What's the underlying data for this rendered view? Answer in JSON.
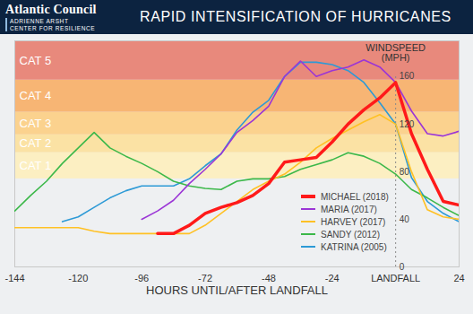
{
  "chart_data": {
    "type": "line",
    "title": "RAPID INTENSIFICATION OF HURRICANES",
    "logo_text": [
      "Atlantic Council",
      "ADRIENNE ARSHT",
      "CENTER FOR RESILIENCE"
    ],
    "x_label": "HOURS UNTIL/AFTER LANDFALL",
    "y_label": "WINDSPEED (MPH)",
    "x": [
      -144,
      -138,
      -132,
      -126,
      -120,
      -114,
      -108,
      -102,
      -96,
      -90,
      -84,
      -78,
      -72,
      -66,
      -60,
      -54,
      -48,
      -42,
      -36,
      -30,
      -24,
      -18,
      -12,
      -6,
      0,
      6,
      12,
      18,
      24
    ],
    "xlim": [
      -144,
      24
    ],
    "xticks": [
      -144,
      -120,
      -96,
      -72,
      -48,
      -24,
      {
        "value": 0,
        "label": "LANDFALL"
      },
      24
    ],
    "ylim": [
      0,
      190
    ],
    "yticks": [
      0,
      40,
      80,
      120,
      160
    ],
    "y_axis_x": 0,
    "grid": false,
    "legend": "bottom-right",
    "bands": [
      {
        "label": "CAT 1",
        "from": 74,
        "to": 96,
        "color": "#fcefc2"
      },
      {
        "label": "CAT 2",
        "from": 96,
        "to": 111,
        "color": "#fbe2a4"
      },
      {
        "label": "CAT 3",
        "from": 111,
        "to": 130,
        "color": "#fbd28e"
      },
      {
        "label": "CAT 4",
        "from": 130,
        "to": 157,
        "color": "#f7b574"
      },
      {
        "label": "CAT 5",
        "from": 157,
        "to": 190,
        "color": "#e8897c"
      }
    ],
    "series": [
      {
        "name": "MICHAEL (2018)",
        "color": "#ff1a1a",
        "line_style": "bold",
        "values": [
          null,
          null,
          null,
          null,
          null,
          null,
          null,
          null,
          null,
          28,
          28,
          35,
          45,
          50,
          54,
          60,
          70,
          88,
          90,
          92,
          105,
          120,
          132,
          142,
          155,
          112,
          82,
          55,
          52
        ]
      },
      {
        "name": "MARIA (2017)",
        "color": "#9b35d6",
        "line_style": "solid",
        "values": [
          null,
          null,
          null,
          null,
          null,
          null,
          null,
          null,
          40,
          47,
          56,
          70,
          82,
          95,
          113,
          123,
          135,
          160,
          173,
          160,
          165,
          168,
          174,
          168,
          155,
          131,
          112,
          110,
          114
        ]
      },
      {
        "name": "HARVEY (2017)",
        "color": "#ffc125",
        "line_style": "solid",
        "values": [
          33,
          33,
          33,
          33,
          33,
          30,
          28,
          28,
          28,
          28,
          28,
          28,
          35,
          45,
          55,
          65,
          72,
          78,
          88,
          100,
          108,
          115,
          122,
          128,
          120,
          80,
          48,
          42,
          40
        ]
      },
      {
        "name": "SANDY (2012)",
        "color": "#3cb84a",
        "line_style": "solid",
        "values": [
          47,
          60,
          72,
          87,
          100,
          113,
          100,
          93,
          87,
          80,
          72,
          68,
          66,
          65,
          72,
          74,
          74,
          76,
          82,
          86,
          90,
          96,
          93,
          87,
          78,
          65,
          58,
          50,
          43
        ]
      },
      {
        "name": "KATRINA (2005)",
        "color": "#2d9ad6",
        "line_style": "solid",
        "values": [
          null,
          null,
          null,
          38,
          42,
          50,
          58,
          64,
          68,
          68,
          68,
          74,
          85,
          95,
          115,
          130,
          140,
          160,
          172,
          172,
          170,
          165,
          155,
          138,
          120,
          75,
          55,
          45,
          38
        ]
      }
    ]
  }
}
